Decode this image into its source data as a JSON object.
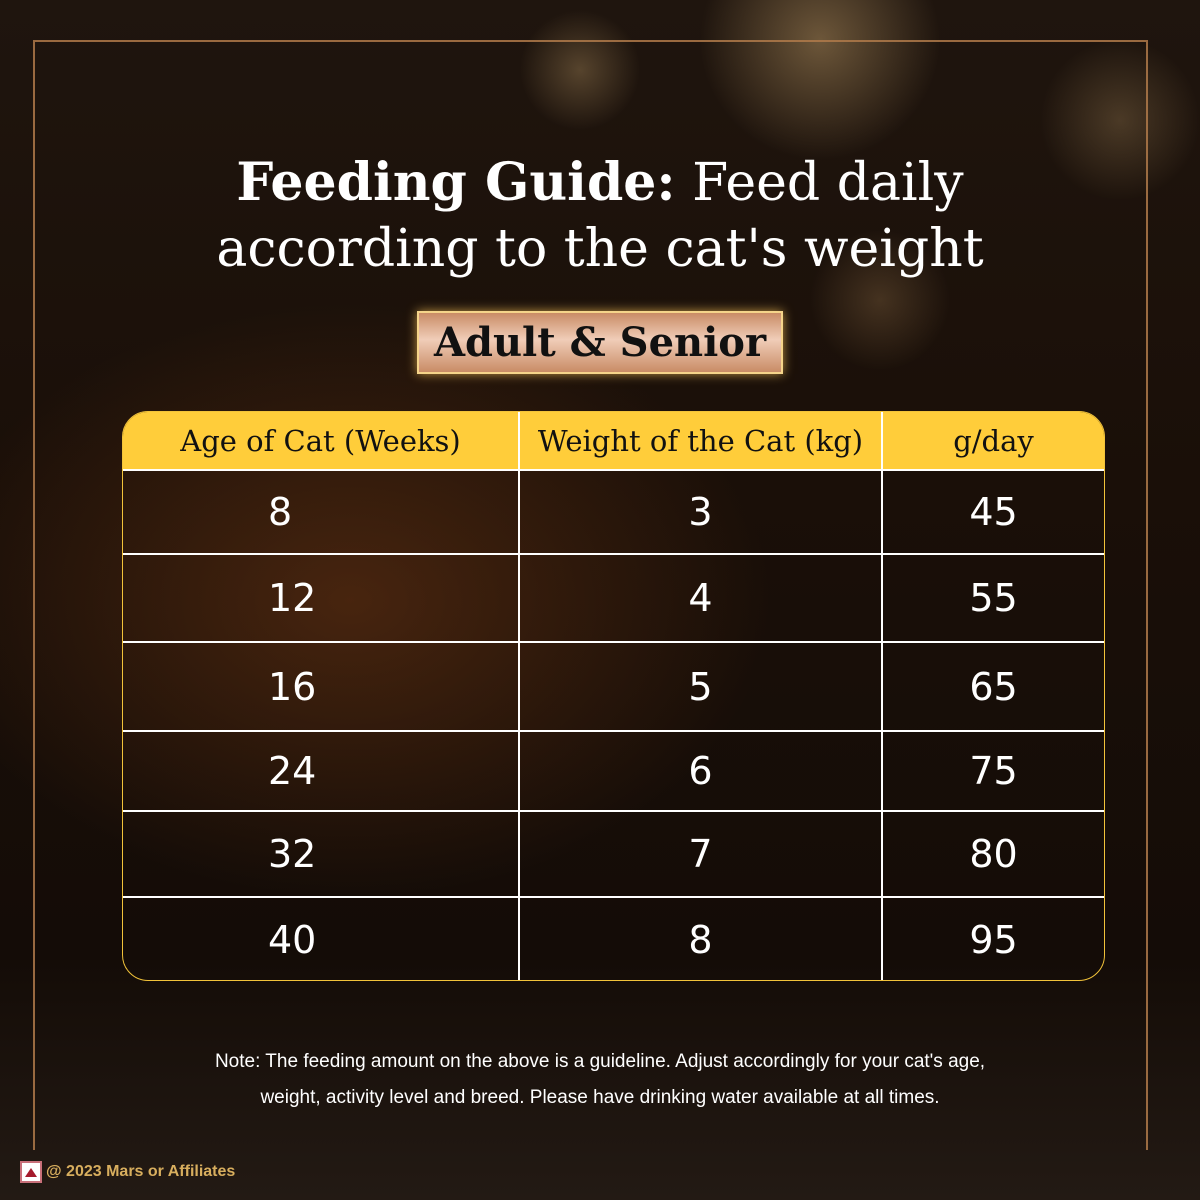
{
  "title": {
    "bold": "Feeding Guide:",
    "rest": " Feed daily",
    "line2": "according to the cat's weight"
  },
  "badge": "Adult & Senior",
  "table": {
    "headers": [
      "Age of Cat (Weeks)",
      "Weight of the Cat (kg)",
      "g/day"
    ],
    "rows": [
      [
        "8",
        "3",
        "45"
      ],
      [
        "12",
        "4",
        "55"
      ],
      [
        "16",
        "5",
        "65"
      ],
      [
        "24",
        "6",
        "75"
      ],
      [
        "32",
        "7",
        "80"
      ],
      [
        "40",
        "8",
        "95"
      ]
    ]
  },
  "note": {
    "line1": "Note: The feeding amount on the above is a guideline. Adjust accordingly for your cat's age,",
    "line2": "weight, activity level and breed. Please have drinking water available at all times."
  },
  "footer": {
    "copyright": "@ 2023 Mars or Affiliates"
  },
  "colors": {
    "header": "#ffcd3a",
    "badge": "#e0b096",
    "footer_text": "#d8ae5e"
  }
}
